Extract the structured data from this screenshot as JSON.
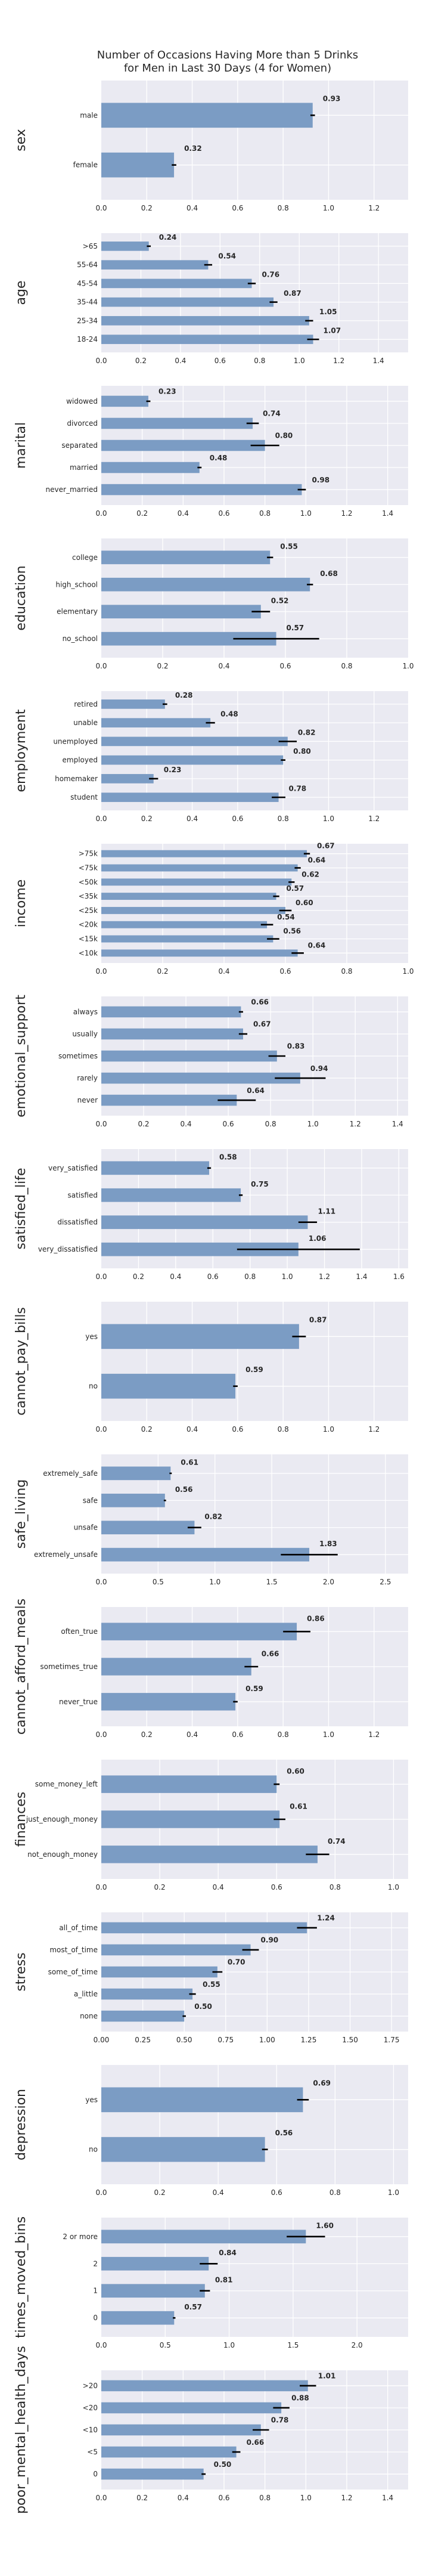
{
  "title_lines": [
    "Number of Occasions Having More than 5 Drinks",
    "for Men in Last 30 Days (4 for Women)"
  ],
  "colors": {
    "bar": "#7b9cc4",
    "panel": "#eaeaf2",
    "error": "#000000"
  },
  "chart_data": [
    {
      "type": "bar",
      "orientation": "horizontal",
      "ylabel": "sex",
      "xlim": [
        0,
        1.35
      ],
      "xticks": [
        "0.0",
        "0.2",
        "0.4",
        "0.6",
        "0.8",
        "1.0",
        "1.2"
      ],
      "categories": [
        "male",
        "female"
      ],
      "values": [
        0.93,
        0.32
      ],
      "errors": [
        0.01,
        0.01
      ],
      "labels": [
        "0.93",
        "0.32"
      ],
      "grid": true
    },
    {
      "type": "bar",
      "orientation": "horizontal",
      "ylabel": "age",
      "xlim": [
        0,
        1.55
      ],
      "xticks": [
        "0.0",
        "0.2",
        "0.4",
        "0.6",
        "0.8",
        "1.0",
        "1.2",
        "1.4"
      ],
      "categories": [
        ">65",
        "55-64",
        "45-54",
        "35-44",
        "25-34",
        "18-24"
      ],
      "values": [
        0.24,
        0.54,
        0.76,
        0.87,
        1.05,
        1.07
      ],
      "errors": [
        0.01,
        0.02,
        0.02,
        0.02,
        0.02,
        0.03
      ],
      "labels": [
        "0.24",
        "0.54",
        "0.76",
        "0.87",
        "1.05",
        "1.07"
      ],
      "grid": true
    },
    {
      "type": "bar",
      "orientation": "horizontal",
      "ylabel": "marital",
      "xlim": [
        0,
        1.5
      ],
      "xticks": [
        "0.0",
        "0.2",
        "0.4",
        "0.6",
        "0.8",
        "1.0",
        "1.2",
        "1.4"
      ],
      "categories": [
        "widowed",
        "divorced",
        "separated",
        "married",
        "never_married"
      ],
      "values": [
        0.23,
        0.74,
        0.8,
        0.48,
        0.98
      ],
      "errors": [
        0.01,
        0.03,
        0.07,
        0.01,
        0.02
      ],
      "labels": [
        "0.23",
        "0.74",
        "0.80",
        "0.48",
        "0.98"
      ],
      "grid": true
    },
    {
      "type": "bar",
      "orientation": "horizontal",
      "ylabel": "education",
      "xlim": [
        0,
        1.0
      ],
      "xticks": [
        "0.0",
        "0.2",
        "0.4",
        "0.6",
        "0.8",
        "1.0"
      ],
      "categories": [
        "college",
        "high_school",
        "elementary",
        "no_school"
      ],
      "values": [
        0.55,
        0.68,
        0.52,
        0.57
      ],
      "errors": [
        0.01,
        0.01,
        0.03,
        0.14
      ],
      "labels": [
        "0.55",
        "0.68",
        "0.52",
        "0.57"
      ],
      "grid": true
    },
    {
      "type": "bar",
      "orientation": "horizontal",
      "ylabel": "employment",
      "xlim": [
        0,
        1.35
      ],
      "xticks": [
        "0.0",
        "0.2",
        "0.4",
        "0.6",
        "0.8",
        "1.0",
        "1.2"
      ],
      "categories": [
        "retired",
        "unable",
        "unemployed",
        "employed",
        "homemaker",
        "student"
      ],
      "values": [
        0.28,
        0.48,
        0.82,
        0.8,
        0.23,
        0.78
      ],
      "errors": [
        0.01,
        0.02,
        0.04,
        0.01,
        0.02,
        0.03
      ],
      "labels": [
        "0.28",
        "0.48",
        "0.82",
        "0.80",
        "0.23",
        "0.78"
      ],
      "grid": true
    },
    {
      "type": "bar",
      "orientation": "horizontal",
      "ylabel": "income",
      "xlim": [
        0,
        1.0
      ],
      "xticks": [
        "0.0",
        "0.2",
        "0.4",
        "0.6",
        "0.8",
        "1.0"
      ],
      "categories": [
        ">75k",
        "<75k",
        "<50k",
        "<35k",
        "<25k",
        "<20k",
        "<15k",
        "<10k"
      ],
      "values": [
        0.67,
        0.64,
        0.62,
        0.57,
        0.6,
        0.54,
        0.56,
        0.64
      ],
      "errors": [
        0.01,
        0.01,
        0.01,
        0.01,
        0.02,
        0.02,
        0.02,
        0.02
      ],
      "labels": [
        "0.67",
        "0.64",
        "0.62",
        "0.57",
        "0.60",
        "0.54",
        "0.56",
        "0.64"
      ],
      "grid": true
    },
    {
      "type": "bar",
      "orientation": "horizontal",
      "ylabel": "emotional_support",
      "xlim": [
        0,
        1.45
      ],
      "xticks": [
        "0.0",
        "0.2",
        "0.4",
        "0.6",
        "0.8",
        "1.0",
        "1.2",
        "1.4"
      ],
      "categories": [
        "always",
        "usually",
        "sometimes",
        "rarely",
        "never"
      ],
      "values": [
        0.66,
        0.67,
        0.83,
        0.94,
        0.64
      ],
      "errors": [
        0.01,
        0.02,
        0.04,
        0.12,
        0.09
      ],
      "labels": [
        "0.66",
        "0.67",
        "0.83",
        "0.94",
        "0.64"
      ],
      "grid": true
    },
    {
      "type": "bar",
      "orientation": "horizontal",
      "ylabel": "satisfied_life",
      "xlim": [
        0,
        1.65
      ],
      "xticks": [
        "0.0",
        "0.2",
        "0.4",
        "0.6",
        "0.8",
        "1.0",
        "1.2",
        "1.4",
        "1.6"
      ],
      "categories": [
        "very_satisfied",
        "satisfied",
        "dissatisfied",
        "very_dissatisfied"
      ],
      "values": [
        0.58,
        0.75,
        1.11,
        1.06
      ],
      "errors": [
        0.01,
        0.01,
        0.05,
        0.33
      ],
      "labels": [
        "0.58",
        "0.75",
        "1.11",
        "1.06"
      ],
      "grid": true
    },
    {
      "type": "bar",
      "orientation": "horizontal",
      "ylabel": "cannot_pay_bills",
      "xlim": [
        0,
        1.35
      ],
      "xticks": [
        "0.0",
        "0.2",
        "0.4",
        "0.6",
        "0.8",
        "1.0",
        "1.2"
      ],
      "categories": [
        "yes",
        "no"
      ],
      "values": [
        0.87,
        0.59
      ],
      "errors": [
        0.03,
        0.01
      ],
      "labels": [
        "0.87",
        "0.59"
      ],
      "grid": true
    },
    {
      "type": "bar",
      "orientation": "horizontal",
      "ylabel": "safe_living",
      "xlim": [
        0,
        2.7
      ],
      "xticks": [
        "0.0",
        "0.5",
        "1.0",
        "1.5",
        "2.0",
        "2.5"
      ],
      "categories": [
        "extremely_safe",
        "safe",
        "unsafe",
        "extremely_unsafe"
      ],
      "values": [
        0.61,
        0.56,
        0.82,
        1.83
      ],
      "errors": [
        0.01,
        0.01,
        0.06,
        0.25
      ],
      "labels": [
        "0.61",
        "0.56",
        "0.82",
        "1.83"
      ],
      "grid": true
    },
    {
      "type": "bar",
      "orientation": "horizontal",
      "ylabel": "cannot_afford_meals",
      "xlim": [
        0,
        1.35
      ],
      "xticks": [
        "0.0",
        "0.2",
        "0.4",
        "0.6",
        "0.8",
        "1.0",
        "1.2"
      ],
      "categories": [
        "often_true",
        "sometimes_true",
        "never_true"
      ],
      "values": [
        0.86,
        0.66,
        0.59
      ],
      "errors": [
        0.06,
        0.03,
        0.01
      ],
      "labels": [
        "0.86",
        "0.66",
        "0.59"
      ],
      "grid": true
    },
    {
      "type": "bar",
      "orientation": "horizontal",
      "ylabel": "finances",
      "xlim": [
        0,
        1.05
      ],
      "xticks": [
        "0.0",
        "0.2",
        "0.4",
        "0.6",
        "0.8",
        "1.0"
      ],
      "categories": [
        "some_money_left",
        "just_enough_money",
        "not_enough_money"
      ],
      "values": [
        0.6,
        0.61,
        0.74
      ],
      "errors": [
        0.01,
        0.02,
        0.04
      ],
      "labels": [
        "0.60",
        "0.61",
        "0.74"
      ],
      "grid": true
    },
    {
      "type": "bar",
      "orientation": "horizontal",
      "ylabel": "stress",
      "xlim": [
        0,
        1.85
      ],
      "xticks": [
        "0.00",
        "0.25",
        "0.50",
        "0.75",
        "1.00",
        "1.25",
        "1.50",
        "1.75"
      ],
      "categories": [
        "all_of_time",
        "most_of_time",
        "some_of_time",
        "a_little",
        "none"
      ],
      "values": [
        1.24,
        0.9,
        0.7,
        0.55,
        0.5
      ],
      "errors": [
        0.06,
        0.05,
        0.03,
        0.02,
        0.01
      ],
      "labels": [
        "1.24",
        "0.90",
        "0.70",
        "0.55",
        "0.50"
      ],
      "grid": true
    },
    {
      "type": "bar",
      "orientation": "horizontal",
      "ylabel": "depression",
      "xlim": [
        0,
        1.05
      ],
      "xticks": [
        "0.0",
        "0.2",
        "0.4",
        "0.6",
        "0.8",
        "1.0"
      ],
      "categories": [
        "yes",
        "no"
      ],
      "values": [
        0.69,
        0.56
      ],
      "errors": [
        0.02,
        0.01
      ],
      "labels": [
        "0.69",
        "0.56"
      ],
      "grid": true
    },
    {
      "type": "bar",
      "orientation": "horizontal",
      "ylabel": "times_moved_bins",
      "xlim": [
        0,
        2.4
      ],
      "xticks": [
        "0.0",
        "0.5",
        "1.0",
        "1.5",
        "2.0"
      ],
      "categories": [
        "2 or more",
        "2",
        "1",
        "0"
      ],
      "values": [
        1.6,
        0.84,
        0.81,
        0.57
      ],
      "errors": [
        0.15,
        0.07,
        0.04,
        0.01
      ],
      "labels": [
        "1.60",
        "0.84",
        "0.81",
        "0.57"
      ],
      "grid": true
    },
    {
      "type": "bar",
      "orientation": "horizontal",
      "ylabel": "poor_mental_health_days",
      "xlim": [
        0,
        1.5
      ],
      "xticks": [
        "0.0",
        "0.2",
        "0.4",
        "0.6",
        "0.8",
        "1.0",
        "1.2",
        "1.4"
      ],
      "categories": [
        ">20",
        "<20",
        "<10",
        "<5",
        "0"
      ],
      "values": [
        1.01,
        0.88,
        0.78,
        0.66,
        0.5
      ],
      "errors": [
        0.04,
        0.04,
        0.04,
        0.02,
        0.01
      ],
      "labels": [
        "1.01",
        "0.88",
        "0.78",
        "0.66",
        "0.50"
      ],
      "grid": true
    }
  ]
}
